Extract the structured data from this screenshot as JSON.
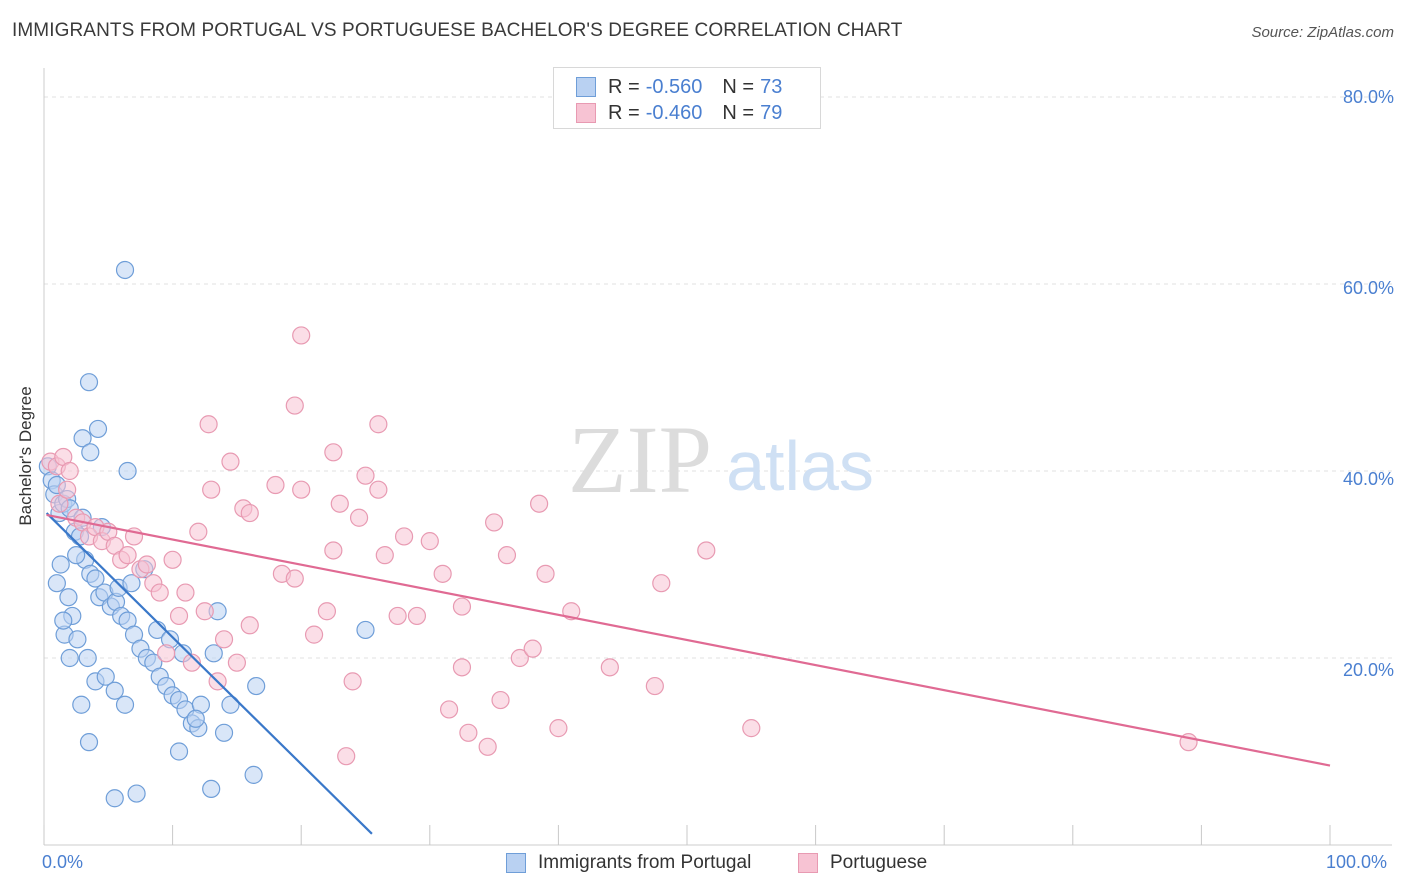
{
  "header": {
    "title": "IMMIGRANTS FROM PORTUGAL VS PORTUGUESE BACHELOR'S DEGREE CORRELATION CHART",
    "source": "Source: ZipAtlas.com"
  },
  "legend_top": {
    "rows": [
      {
        "r_label": "R =",
        "r_value": "-0.560",
        "n_label": "N =",
        "n_value": "73"
      },
      {
        "r_label": "R =",
        "r_value": "-0.460",
        "n_label": "N =",
        "n_value": "79"
      }
    ]
  },
  "watermark": {
    "zip": "ZIP",
    "atlas": "atlas"
  },
  "colors": {
    "blue_fill": "#b9d1f2",
    "blue_stroke": "#6f9ed8",
    "blue_line": "#3a78c9",
    "pink_fill": "#f7c3d3",
    "pink_stroke": "#e89ab2",
    "pink_line": "#e06a93",
    "tick_text": "#4a7fd0",
    "grid": "#e2e2e2"
  },
  "chart_data": {
    "type": "scatter",
    "title": "IMMIGRANTS FROM PORTUGAL VS PORTUGUESE BACHELOR'S DEGREE CORRELATION CHART",
    "xlabel": "",
    "ylabel": "Bachelor's Degree",
    "xlim": [
      0,
      100
    ],
    "ylim": [
      0,
      80
    ],
    "x_tick_labels": [
      "0.0%",
      "100.0%"
    ],
    "y_ticks": [
      20,
      40,
      60,
      80
    ],
    "y_tick_labels": [
      "20.0%",
      "40.0%",
      "60.0%",
      "80.0%"
    ],
    "grid": true,
    "legend_position": "bottom",
    "series": [
      {
        "name": "Immigrants from Portugal",
        "R": -0.56,
        "N": 73,
        "trend": {
          "x0": 0.2,
          "y0": 35.5,
          "x1": 25.5,
          "y1": 1.2
        },
        "points": [
          [
            0.3,
            40.5
          ],
          [
            0.6,
            39.0
          ],
          [
            0.8,
            37.5
          ],
          [
            1.0,
            38.5
          ],
          [
            1.2,
            35.5
          ],
          [
            1.5,
            36.5
          ],
          [
            1.8,
            37.0
          ],
          [
            2.0,
            36.0
          ],
          [
            2.4,
            33.5
          ],
          [
            2.8,
            33.0
          ],
          [
            3.2,
            30.5
          ],
          [
            3.6,
            29.0
          ],
          [
            4.0,
            28.5
          ],
          [
            4.3,
            26.5
          ],
          [
            4.7,
            27.0
          ],
          [
            5.2,
            25.5
          ],
          [
            5.6,
            26.0
          ],
          [
            6.0,
            24.5
          ],
          [
            6.5,
            24.0
          ],
          [
            7.0,
            22.5
          ],
          [
            7.5,
            21.0
          ],
          [
            8.0,
            20.0
          ],
          [
            8.5,
            19.5
          ],
          [
            9.0,
            18.0
          ],
          [
            9.5,
            17.0
          ],
          [
            10.0,
            16.0
          ],
          [
            10.5,
            15.5
          ],
          [
            11.0,
            14.5
          ],
          [
            11.5,
            13.0
          ],
          [
            12.0,
            12.5
          ],
          [
            2.5,
            31.0
          ],
          [
            3.0,
            35.0
          ],
          [
            4.5,
            34.0
          ],
          [
            5.8,
            27.5
          ],
          [
            6.8,
            28.0
          ],
          [
            7.8,
            29.5
          ],
          [
            8.8,
            23.0
          ],
          [
            9.8,
            22.0
          ],
          [
            10.8,
            20.5
          ],
          [
            13.2,
            20.5
          ],
          [
            1.3,
            30.0
          ],
          [
            1.9,
            26.5
          ],
          [
            2.2,
            24.5
          ],
          [
            1.6,
            22.5
          ],
          [
            2.6,
            22.0
          ],
          [
            3.4,
            20.0
          ],
          [
            4.0,
            17.5
          ],
          [
            4.8,
            18.0
          ],
          [
            5.5,
            16.5
          ],
          [
            6.3,
            15.0
          ],
          [
            1.0,
            28.0
          ],
          [
            1.5,
            24.0
          ],
          [
            2.0,
            20.0
          ],
          [
            2.9,
            15.0
          ],
          [
            3.5,
            11.0
          ],
          [
            5.5,
            5.0
          ],
          [
            7.2,
            5.5
          ],
          [
            10.5,
            10.0
          ],
          [
            13.0,
            6.0
          ],
          [
            16.3,
            7.5
          ],
          [
            12.2,
            15.0
          ],
          [
            11.8,
            13.5
          ],
          [
            14.0,
            12.0
          ],
          [
            14.5,
            15.0
          ],
          [
            16.5,
            17.0
          ],
          [
            13.5,
            25.0
          ],
          [
            25.0,
            23.0
          ],
          [
            3.5,
            49.5
          ],
          [
            3.0,
            43.5
          ],
          [
            4.2,
            44.5
          ],
          [
            6.5,
            40.0
          ],
          [
            3.6,
            42.0
          ],
          [
            6.3,
            61.5
          ]
        ]
      },
      {
        "name": "Portuguese",
        "R": -0.46,
        "N": 79,
        "trend": {
          "x0": 0.2,
          "y0": 35.3,
          "x1": 100,
          "y1": 8.5
        },
        "points": [
          [
            0.5,
            41.0
          ],
          [
            1.0,
            40.5
          ],
          [
            1.5,
            41.5
          ],
          [
            2.0,
            40.0
          ],
          [
            1.2,
            36.5
          ],
          [
            1.8,
            38.0
          ],
          [
            2.5,
            35.0
          ],
          [
            3.0,
            34.5
          ],
          [
            3.5,
            33.0
          ],
          [
            4.0,
            34.0
          ],
          [
            4.5,
            32.5
          ],
          [
            5.0,
            33.5
          ],
          [
            5.5,
            32.0
          ],
          [
            6.0,
            30.5
          ],
          [
            6.5,
            31.0
          ],
          [
            7.0,
            33.0
          ],
          [
            7.5,
            29.5
          ],
          [
            8.0,
            30.0
          ],
          [
            8.5,
            28.0
          ],
          [
            9.0,
            27.0
          ],
          [
            10.0,
            30.5
          ],
          [
            11.0,
            27.0
          ],
          [
            12.5,
            25.0
          ],
          [
            14.0,
            22.0
          ],
          [
            15.0,
            19.5
          ],
          [
            16.0,
            23.5
          ],
          [
            13.5,
            17.5
          ],
          [
            10.5,
            24.5
          ],
          [
            9.5,
            20.5
          ],
          [
            11.5,
            19.5
          ],
          [
            12.0,
            33.5
          ],
          [
            13.0,
            38.0
          ],
          [
            14.5,
            41.0
          ],
          [
            15.5,
            36.0
          ],
          [
            16.0,
            35.5
          ],
          [
            18.0,
            38.5
          ],
          [
            20.0,
            38.0
          ],
          [
            22.5,
            31.5
          ],
          [
            23.0,
            36.5
          ],
          [
            24.5,
            35.0
          ],
          [
            25.0,
            39.5
          ],
          [
            26.0,
            38.0
          ],
          [
            28.0,
            33.0
          ],
          [
            30.0,
            32.5
          ],
          [
            31.0,
            29.0
          ],
          [
            32.5,
            25.5
          ],
          [
            35.0,
            34.5
          ],
          [
            36.0,
            31.0
          ],
          [
            38.5,
            36.5
          ],
          [
            39.0,
            29.0
          ],
          [
            18.5,
            29.0
          ],
          [
            19.5,
            28.5
          ],
          [
            21.0,
            22.5
          ],
          [
            22.0,
            25.0
          ],
          [
            24.0,
            17.5
          ],
          [
            26.5,
            31.0
          ],
          [
            27.5,
            24.5
          ],
          [
            29.0,
            24.5
          ],
          [
            31.5,
            14.5
          ],
          [
            32.5,
            19.0
          ],
          [
            33.0,
            12.0
          ],
          [
            34.5,
            10.5
          ],
          [
            35.5,
            15.5
          ],
          [
            37.0,
            20.0
          ],
          [
            40.0,
            12.5
          ],
          [
            41.0,
            25.0
          ],
          [
            44.0,
            19.0
          ],
          [
            47.5,
            17.0
          ],
          [
            48.0,
            28.0
          ],
          [
            51.5,
            31.5
          ],
          [
            55.0,
            12.5
          ],
          [
            23.5,
            9.5
          ],
          [
            20.0,
            54.5
          ],
          [
            19.5,
            47.0
          ],
          [
            12.8,
            45.0
          ],
          [
            26.0,
            45.0
          ],
          [
            22.5,
            42.0
          ],
          [
            89.0,
            11.0
          ],
          [
            38.0,
            21.0
          ]
        ]
      }
    ]
  }
}
